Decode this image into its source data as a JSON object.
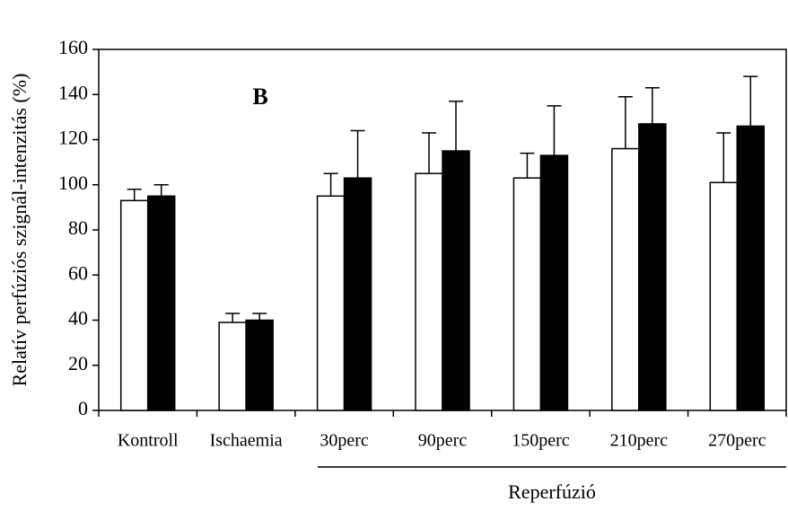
{
  "chart_data": {
    "type": "bar",
    "y_label": "Relatív perfúziós szignál-intenzitás (%)",
    "annotation": "B",
    "group_label": "Reperfúzió",
    "categories": [
      "Kontroll",
      "Ischaemia",
      "30perc",
      "90perc",
      "150perc",
      "210perc",
      "270perc"
    ],
    "series": [
      {
        "color": "#ffffff",
        "values": [
          93,
          39,
          95,
          105,
          103,
          116,
          101
        ],
        "errors": [
          5,
          4,
          10,
          18,
          11,
          23,
          22
        ]
      },
      {
        "color": "#000000",
        "values": [
          95,
          40,
          103,
          115,
          113,
          127,
          126
        ],
        "errors": [
          5,
          3,
          21,
          22,
          22,
          16,
          22
        ]
      }
    ],
    "ylim": [
      0,
      160
    ],
    "yticks": [
      0,
      20,
      40,
      60,
      80,
      100,
      120,
      140,
      160
    ],
    "grid": false
  }
}
